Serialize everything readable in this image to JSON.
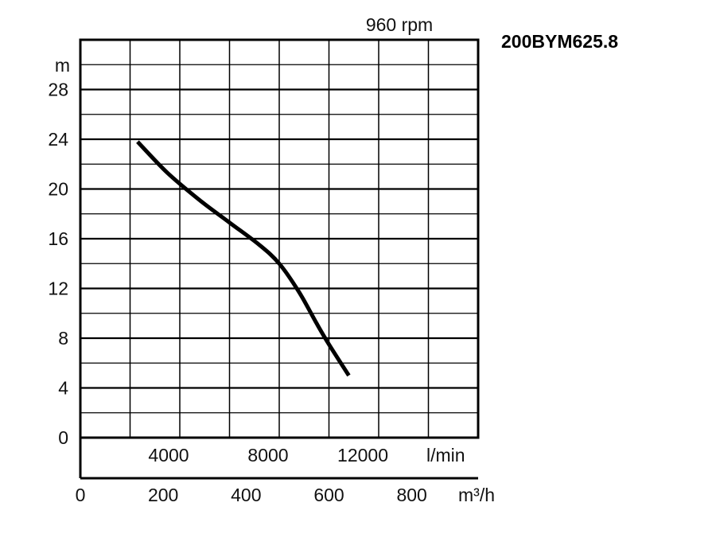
{
  "chart_data": {
    "type": "line",
    "model": "200BYM625.8",
    "speed": "960 rpm",
    "ylabel": "m",
    "ylim": [
      0,
      32
    ],
    "yticks": [
      0,
      4,
      8,
      12,
      16,
      20,
      24,
      28
    ],
    "ytick_labels": [
      "0",
      "4",
      "8",
      "12",
      "16",
      "20",
      "24",
      "28"
    ],
    "xlim_lmin": [
      0,
      16000
    ],
    "xticks_lmin": [
      4000,
      8000,
      12000
    ],
    "xtick_labels_lmin": [
      "4000",
      "8000",
      "12000"
    ],
    "xunit_lmin": "l/min",
    "xticks_m3h": [
      0,
      200,
      400,
      600,
      800
    ],
    "xtick_labels_m3h": [
      "0",
      "200",
      "400",
      "600",
      "800"
    ],
    "xunit_m3h": "m³/h",
    "grid": true,
    "series": [
      {
        "x": [
          2300,
          3500,
          4800,
          6000,
          7200,
          8000,
          8800,
          9500,
          10000,
          10800
        ],
        "y": [
          23.8,
          21.3,
          19.1,
          17.3,
          15.5,
          14.0,
          11.7,
          9.2,
          7.5,
          5.0
        ]
      }
    ]
  }
}
